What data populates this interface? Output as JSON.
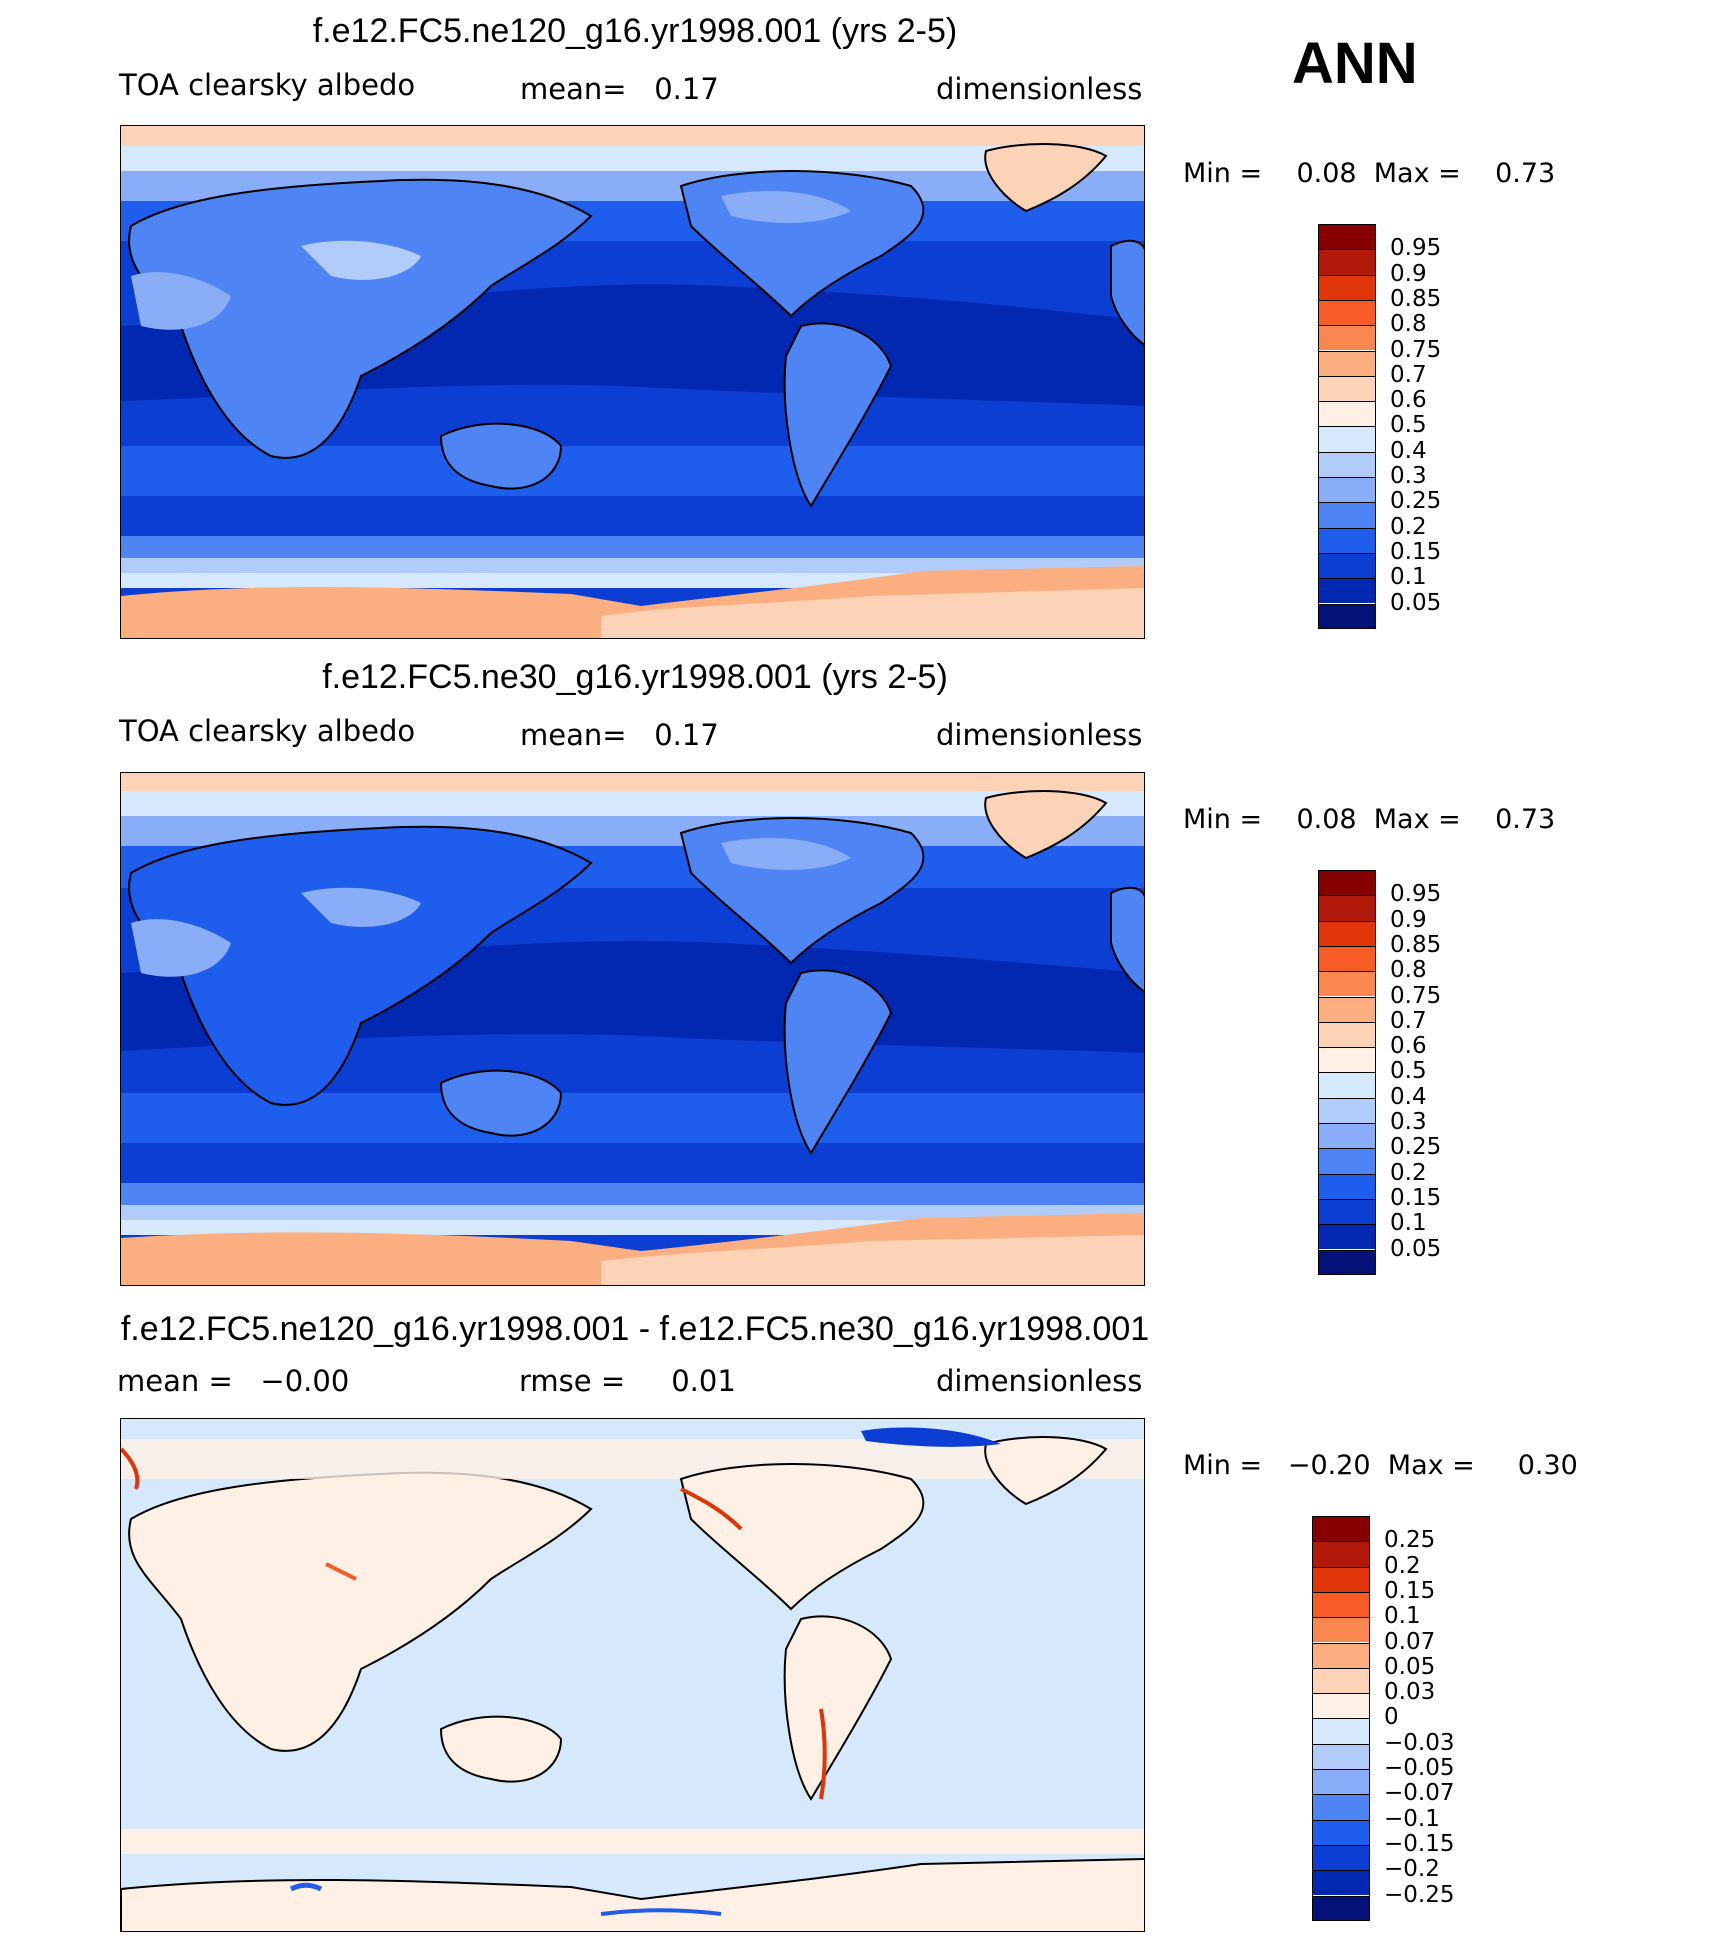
{
  "season": "ANN",
  "panels": [
    {
      "id": "top",
      "title": "f.e12.FC5.ne120_g16.yr1998.001 (yrs 2-5)",
      "left_text": "TOA clearsky albedo",
      "mid_text": "mean=   0.17",
      "right_text": "dimensionless",
      "minmax": "Min =    0.08  Max =    0.73",
      "colorbar": {
        "levels": [
          "0.95",
          "0.9",
          "0.85",
          "0.8",
          "0.75",
          "0.7",
          "0.6",
          "0.5",
          "0.4",
          "0.3",
          "0.25",
          "0.2",
          "0.15",
          "0.1",
          "0.05"
        ],
        "colors": [
          "#870000",
          "#b3190a",
          "#df3509",
          "#f75b26",
          "#fb8750",
          "#fbaf80",
          "#fdd3b8",
          "#fff0e6",
          "#d6e8fb",
          "#b1ccf9",
          "#8aadf7",
          "#4f84f4",
          "#1f5ded",
          "#0d3ed3",
          "#0228b1",
          "#041278"
        ]
      }
    },
    {
      "id": "middle",
      "title": "f.e12.FC5.ne30_g16.yr1998.001 (yrs 2-5)",
      "left_text": "TOA clearsky albedo",
      "mid_text": "mean=   0.17",
      "right_text": "dimensionless",
      "minmax": "Min =    0.08  Max =    0.73",
      "colorbar": {
        "levels": [
          "0.95",
          "0.9",
          "0.85",
          "0.8",
          "0.75",
          "0.7",
          "0.6",
          "0.5",
          "0.4",
          "0.3",
          "0.25",
          "0.2",
          "0.15",
          "0.1",
          "0.05"
        ],
        "colors": [
          "#870000",
          "#b3190a",
          "#df3509",
          "#f75b26",
          "#fb8750",
          "#fbaf80",
          "#fdd3b8",
          "#fff0e6",
          "#d6e8fb",
          "#b1ccf9",
          "#8aadf7",
          "#4f84f4",
          "#1f5ded",
          "#0d3ed3",
          "#0228b1",
          "#041278"
        ]
      }
    },
    {
      "id": "diff",
      "title": "f.e12.FC5.ne120_g16.yr1998.001 - f.e12.FC5.ne30_g16.yr1998.001",
      "left_text": "mean =   −0.00",
      "mid_text": "rmse =     0.01",
      "right_text": "dimensionless",
      "minmax": "Min =   −0.20  Max =     0.30",
      "colorbar": {
        "levels": [
          "0.25",
          "0.2",
          "0.15",
          "0.1",
          "0.07",
          "0.05",
          "0.03",
          "0",
          "−0.03",
          "−0.05",
          "−0.07",
          "−0.1",
          "−0.15",
          "−0.2",
          "−0.25"
        ],
        "colors": [
          "#870000",
          "#b3190a",
          "#df3509",
          "#f75b26",
          "#fb8750",
          "#fbaf80",
          "#fdd3b8",
          "#fff0e6",
          "#d6e8fb",
          "#b1ccf9",
          "#8aadf7",
          "#4f84f4",
          "#1f5ded",
          "#0d3ed3",
          "#0228b1",
          "#041278"
        ]
      }
    }
  ]
}
